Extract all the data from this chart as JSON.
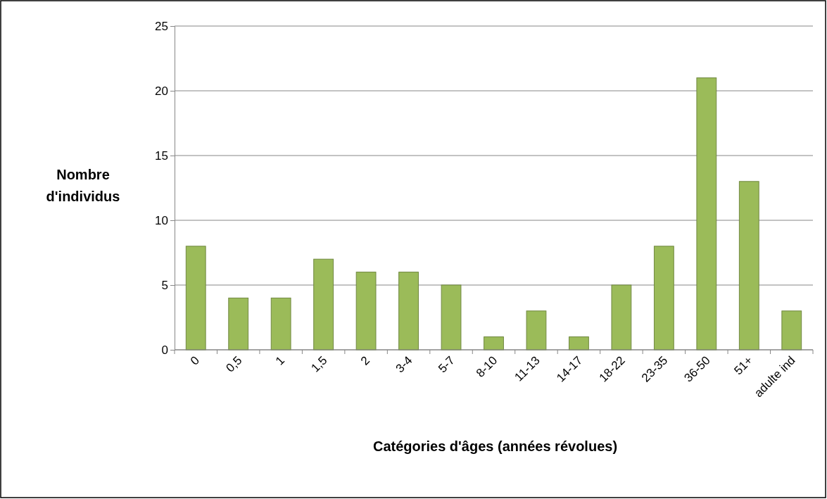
{
  "chart_data": {
    "type": "bar",
    "xlabel": "Catégories d'âges (années révolues)",
    "ylabel": "Nombre d'individus",
    "categories": [
      "0",
      "0,5",
      "1",
      "1,5",
      "2",
      "3-4",
      "5-7",
      "8-10",
      "11-13",
      "14-17",
      "18-22",
      "23-35",
      "36-50",
      "51+",
      "adulte ind"
    ],
    "values": [
      8,
      4,
      4,
      7,
      6,
      6,
      5,
      1,
      3,
      1,
      5,
      8,
      21,
      13,
      3
    ],
    "color": "#9bbb59",
    "ylim": [
      0,
      25
    ],
    "yticks": [
      0,
      5,
      10,
      15,
      20,
      25
    ],
    "grid": "y"
  }
}
